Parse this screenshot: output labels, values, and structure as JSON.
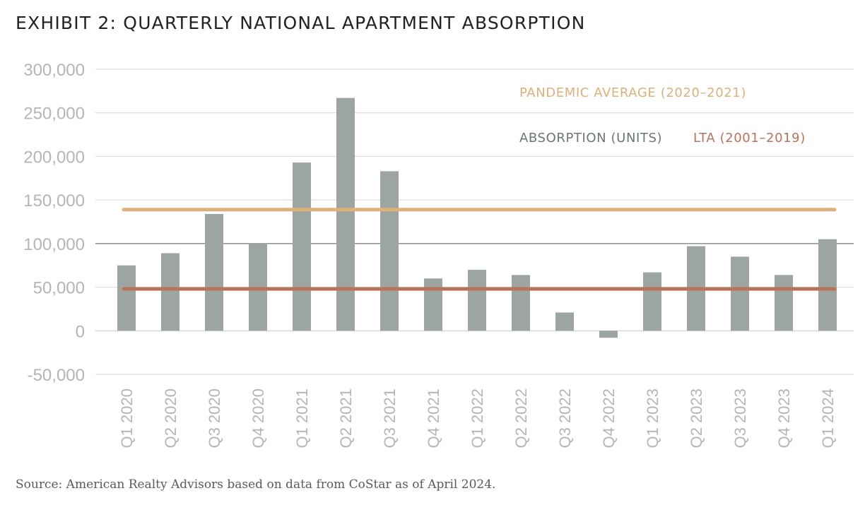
{
  "title": "EXHIBIT 2: QUARTERLY NATIONAL APARTMENT ABSORPTION",
  "source": "Source: American Realty Advisors based on data from CoStar as of April 2024.",
  "colors": {
    "bars": "#9ca59f",
    "pandemic_line": "#deb07a",
    "lta_line": "#b8735a",
    "absorption_legend": "#6b7770",
    "grid": "#d4d4d4",
    "zero_line": "#c8c8c8",
    "axis_text": "#b5b5b5"
  },
  "chart_data": {
    "type": "bar",
    "categories": [
      "Q1 2020",
      "Q2 2020",
      "Q3 2020",
      "Q4 2020",
      "Q1 2021",
      "Q2 2021",
      "Q3 2021",
      "Q4 2021",
      "Q1 2022",
      "Q2 2022",
      "Q3 2022",
      "Q4 2022",
      "Q1 2023",
      "Q2 2023",
      "Q3 2023",
      "Q4 2023",
      "Q1 2024"
    ],
    "series": [
      {
        "name": "ABSORPTION (UNITS)",
        "values": [
          75000,
          89000,
          134000,
          100000,
          193000,
          267000,
          183000,
          60000,
          70000,
          64000,
          21000,
          -8000,
          67000,
          97000,
          85000,
          64000,
          105000
        ]
      }
    ],
    "reference_lines": [
      {
        "name": "PANDEMIC AVERAGE (2020–2021)",
        "value": 139000
      },
      {
        "name": "LTA (2001–2019)",
        "value": 48000
      }
    ],
    "ylim": [
      -50000,
      300000
    ],
    "yticks": [
      300000,
      250000,
      200000,
      150000,
      100000,
      50000,
      0,
      -50000
    ],
    "ytick_labels": [
      "300,000",
      "250,000",
      "200,000",
      "150,000",
      "100,000",
      "50,000",
      "0",
      "-50,000"
    ],
    "grid": true,
    "legend_position": "top-right"
  }
}
